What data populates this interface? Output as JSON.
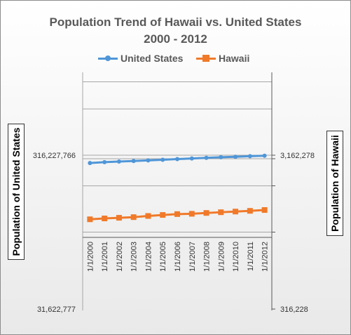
{
  "chart_data": {
    "type": "line",
    "title": [
      "Population Trend of Hawaii vs. United States",
      "2000 - 2012"
    ],
    "categories": [
      "1/1/2000",
      "1/1/2001",
      "1/1/2002",
      "1/1/2003",
      "1/1/2004",
      "1/1/2005",
      "1/1/2006",
      "1/1/2007",
      "1/1/2008",
      "1/1/2009",
      "1/1/2010",
      "1/1/2011",
      "1/1/2012"
    ],
    "series": [
      {
        "name": "United States",
        "axis": "left",
        "color": "#4f96d8",
        "values": [
          281421906,
          284968955,
          287625193,
          290107933,
          292805643,
          295516599,
          298379912,
          301231207,
          304093966,
          306771529,
          308745538,
          311591917,
          313914040
        ]
      },
      {
        "name": "Hawaii",
        "axis": "right",
        "color": "#f07a2a",
        "values": [
          1211537,
          1227024,
          1239298,
          1251154,
          1273569,
          1292729,
          1309731,
          1315675,
          1332213,
          1346717,
          1360301,
          1374810,
          1392313
        ]
      }
    ],
    "y_left": {
      "label": "Population of United States",
      "scale": "log",
      "ylim": [
        31622777,
        316227766
      ],
      "ticks": [
        "316,227,766",
        "31,622,777"
      ]
    },
    "y_right": {
      "label": "Population of Hawaii",
      "scale": "log",
      "ylim": [
        316228,
        3162278
      ],
      "ticks": [
        "3,162,278",
        "316,228"
      ]
    },
    "legend": "top",
    "grid": true
  }
}
